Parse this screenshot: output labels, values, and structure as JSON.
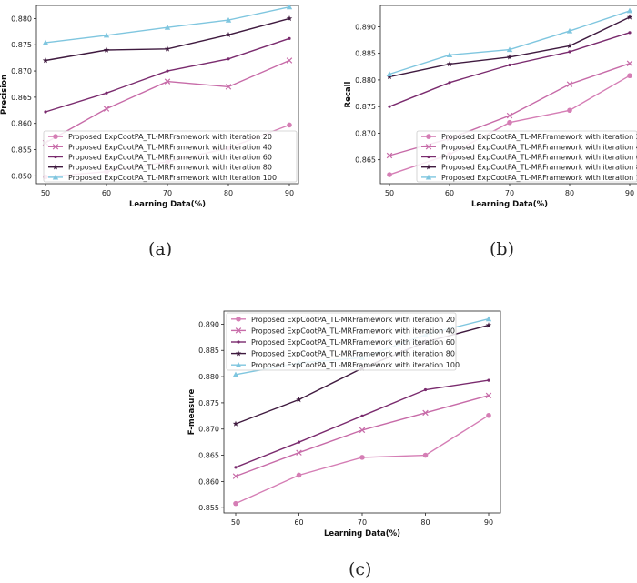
{
  "captions": [
    "(a)",
    "(b)",
    "(c)"
  ],
  "legend_labels": [
    "Proposed ExpCootPA_TL-MRFramework with iteration 20",
    "Proposed ExpCootPA_TL-MRFramework with iteration 40",
    "Proposed ExpCootPA_TL-MRFramework with iteration 60",
    "Proposed ExpCootPA_TL-MRFramework with iteration 80",
    "Proposed ExpCootPA_TL-MRFramework with iteration 100"
  ],
  "series_style": [
    {
      "color": "#d57eb5",
      "marker": "circle"
    },
    {
      "color": "#c76ba8",
      "marker": "x"
    },
    {
      "color": "#7a2b6e",
      "marker": "dot"
    },
    {
      "color": "#3f1a3f",
      "marker": "star"
    },
    {
      "color": "#7fc6df",
      "marker": "triangle"
    }
  ],
  "chart_data": [
    {
      "type": "line",
      "title": "",
      "xlabel": "Learning Data(%)",
      "ylabel": "Precision",
      "x": [
        50,
        60,
        70,
        80,
        90
      ],
      "xticks": [
        "50",
        "60",
        "70",
        "80",
        "90"
      ],
      "ylim": [
        0.8485,
        0.8825
      ],
      "yticks": [
        "0.850",
        "0.855",
        "0.860",
        "0.865",
        "0.870",
        "0.875",
        "0.880"
      ],
      "legend": "lower-right",
      "series": [
        {
          "name": "Proposed ExpCootPA_TL-MRFramework with iteration 20",
          "values": [
            0.8498,
            0.8508,
            0.8527,
            0.8553,
            0.8597
          ]
        },
        {
          "name": "Proposed ExpCootPA_TL-MRFramework with iteration 40",
          "values": [
            0.8563,
            0.8628,
            0.868,
            0.867,
            0.872
          ]
        },
        {
          "name": "Proposed ExpCootPA_TL-MRFramework with iteration 60",
          "values": [
            0.8622,
            0.8658,
            0.87,
            0.8723,
            0.8762
          ]
        },
        {
          "name": "Proposed ExpCootPA_TL-MRFramework with iteration 80",
          "values": [
            0.872,
            0.874,
            0.8742,
            0.8769,
            0.88
          ]
        },
        {
          "name": "Proposed ExpCootPA_TL-MRFramework with iteration 100",
          "values": [
            0.8754,
            0.8768,
            0.8783,
            0.8797,
            0.8822
          ]
        }
      ]
    },
    {
      "type": "line",
      "title": "",
      "xlabel": "Learning Data(%)",
      "ylabel": "Recall",
      "x": [
        50,
        60,
        70,
        80,
        90
      ],
      "xticks": [
        "50",
        "60",
        "70",
        "80",
        "90"
      ],
      "ylim": [
        0.8605,
        0.894
      ],
      "yticks": [
        "0.865",
        "0.870",
        "0.875",
        "0.880",
        "0.885",
        "0.890"
      ],
      "legend": "lower-right",
      "series": [
        {
          "name": "Proposed ExpCootPA_TL-MRFramework with iteration 20",
          "values": [
            0.8622,
            0.866,
            0.872,
            0.8743,
            0.8808
          ]
        },
        {
          "name": "Proposed ExpCootPA_TL-MRFramework with iteration 40",
          "values": [
            0.8658,
            0.869,
            0.8733,
            0.8792,
            0.8831
          ]
        },
        {
          "name": "Proposed ExpCootPA_TL-MRFramework with iteration 60",
          "values": [
            0.875,
            0.8795,
            0.8828,
            0.8853,
            0.8889
          ]
        },
        {
          "name": "Proposed ExpCootPA_TL-MRFramework with iteration 80",
          "values": [
            0.8806,
            0.883,
            0.8843,
            0.8864,
            0.8918
          ]
        },
        {
          "name": "Proposed ExpCootPA_TL-MRFramework with iteration 100",
          "values": [
            0.8811,
            0.8847,
            0.8857,
            0.8892,
            0.893
          ]
        }
      ]
    },
    {
      "type": "line",
      "title": "",
      "xlabel": "Learning Data(%)",
      "ylabel": "F-measure",
      "x": [
        50,
        60,
        70,
        80,
        90
      ],
      "xticks": [
        "50",
        "60",
        "70",
        "80",
        "90"
      ],
      "ylim": [
        0.854,
        0.8925
      ],
      "yticks": [
        "0.855",
        "0.860",
        "0.865",
        "0.870",
        "0.875",
        "0.880",
        "0.885",
        "0.890"
      ],
      "legend": "upper-left",
      "series": [
        {
          "name": "Proposed ExpCootPA_TL-MRFramework with iteration 20",
          "values": [
            0.8558,
            0.8612,
            0.8646,
            0.865,
            0.8726
          ]
        },
        {
          "name": "Proposed ExpCootPA_TL-MRFramework with iteration 40",
          "values": [
            0.861,
            0.8655,
            0.8698,
            0.8731,
            0.8764
          ]
        },
        {
          "name": "Proposed ExpCootPA_TL-MRFramework with iteration 60",
          "values": [
            0.8627,
            0.8675,
            0.8725,
            0.8775,
            0.8793
          ]
        },
        {
          "name": "Proposed ExpCootPA_TL-MRFramework with iteration 80",
          "values": [
            0.871,
            0.8756,
            0.8816,
            0.8866,
            0.8898
          ]
        },
        {
          "name": "Proposed ExpCootPA_TL-MRFramework with iteration 100",
          "values": [
            0.8804,
            0.8826,
            0.8836,
            0.888,
            0.891
          ]
        }
      ]
    }
  ]
}
